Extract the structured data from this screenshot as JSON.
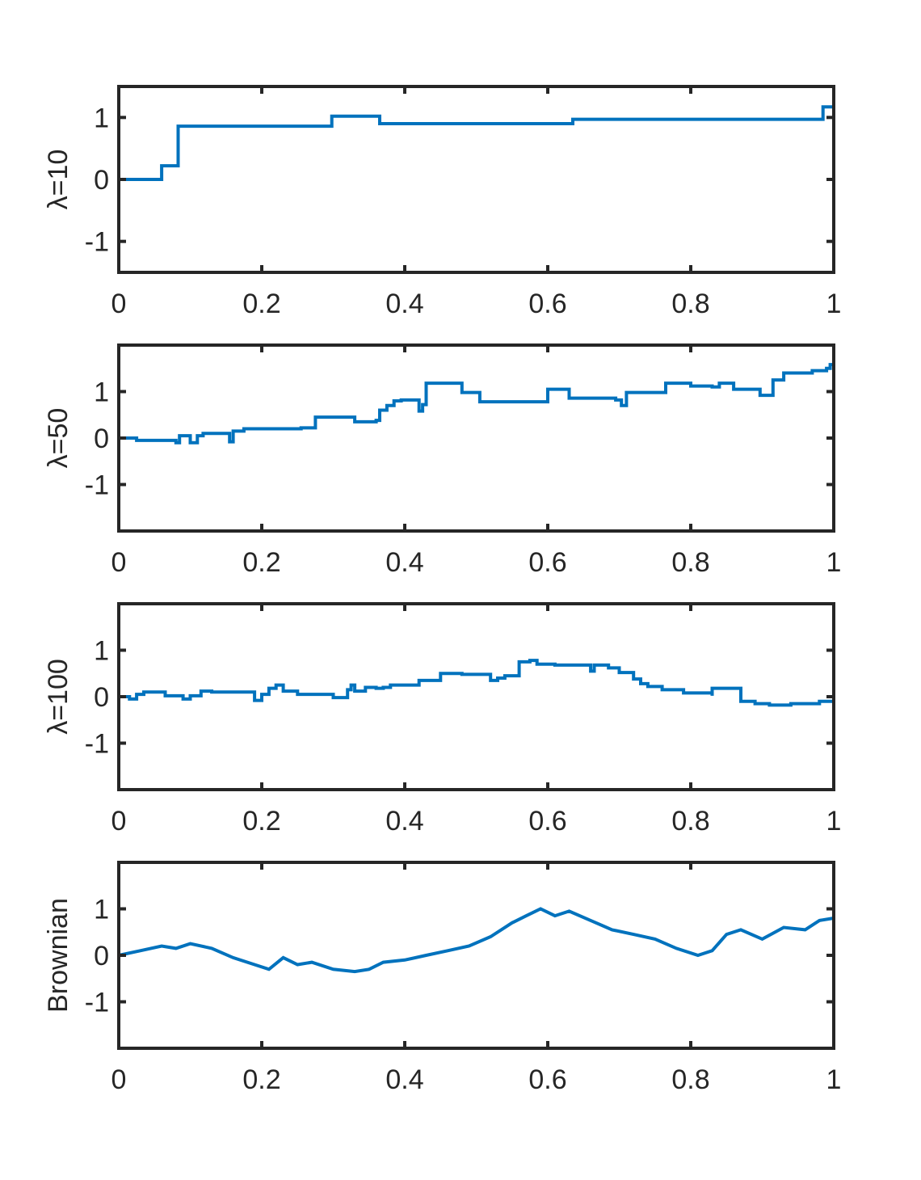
{
  "chart_data": [
    {
      "type": "line",
      "ylabel": "λ=10",
      "xlim": [
        0,
        1
      ],
      "ylim": [
        -1.5,
        1.5
      ],
      "xticks": [
        "0",
        "0.2",
        "0.4",
        "0.6",
        "0.8",
        "1"
      ],
      "yticks": [
        "-1",
        "0",
        "1"
      ],
      "color": "#0072BD",
      "step": true,
      "x": [
        0,
        0.06,
        0.083,
        0.298,
        0.365,
        0.635,
        0.985,
        1.0
      ],
      "y": [
        0.0,
        0.22,
        0.86,
        1.02,
        0.9,
        0.97,
        1.17,
        1.17
      ]
    },
    {
      "type": "line",
      "ylabel": "λ=50",
      "xlim": [
        0,
        1
      ],
      "ylim": [
        -2,
        2
      ],
      "xticks": [
        "0",
        "0.2",
        "0.4",
        "0.6",
        "0.8",
        "1"
      ],
      "yticks": [
        "-1",
        "0",
        "1"
      ],
      "color": "#0072BD",
      "step": true,
      "x": [
        0,
        0.025,
        0.08,
        0.085,
        0.1,
        0.11,
        0.118,
        0.155,
        0.16,
        0.175,
        0.255,
        0.275,
        0.293,
        0.33,
        0.36,
        0.365,
        0.375,
        0.385,
        0.395,
        0.42,
        0.425,
        0.43,
        0.452,
        0.48,
        0.505,
        0.6,
        0.612,
        0.63,
        0.675,
        0.695,
        0.703,
        0.71,
        0.745,
        0.765,
        0.8,
        0.83,
        0.84,
        0.86,
        0.87,
        0.897,
        0.9,
        0.915,
        0.93,
        0.97,
        0.99,
        0.995,
        1.0
      ],
      "y": [
        0.0,
        -0.05,
        -0.1,
        0.05,
        -0.1,
        0.05,
        0.1,
        -0.08,
        0.15,
        0.2,
        0.22,
        0.45,
        0.45,
        0.35,
        0.38,
        0.6,
        0.7,
        0.8,
        0.82,
        0.58,
        0.72,
        1.18,
        1.18,
        0.98,
        0.78,
        1.05,
        1.05,
        0.86,
        0.86,
        0.82,
        0.7,
        0.98,
        0.98,
        1.18,
        1.12,
        1.1,
        1.18,
        1.05,
        1.05,
        0.92,
        0.92,
        1.25,
        1.4,
        1.45,
        1.5,
        1.58,
        1.58
      ]
    },
    {
      "type": "line",
      "ylabel": "λ=100",
      "xlim": [
        0,
        1
      ],
      "ylim": [
        -2,
        2
      ],
      "xticks": [
        "0",
        "0.2",
        "0.4",
        "0.6",
        "0.8",
        "1"
      ],
      "yticks": [
        "-1",
        "0",
        "1"
      ],
      "color": "#0072BD",
      "step": true,
      "x": [
        0,
        0.015,
        0.025,
        0.035,
        0.065,
        0.09,
        0.1,
        0.115,
        0.13,
        0.16,
        0.19,
        0.2,
        0.21,
        0.22,
        0.23,
        0.25,
        0.275,
        0.3,
        0.32,
        0.325,
        0.33,
        0.345,
        0.36,
        0.37,
        0.38,
        0.42,
        0.45,
        0.48,
        0.52,
        0.53,
        0.54,
        0.56,
        0.575,
        0.585,
        0.61,
        0.63,
        0.66,
        0.665,
        0.685,
        0.7,
        0.72,
        0.73,
        0.74,
        0.76,
        0.79,
        0.83,
        0.83,
        0.87,
        0.88,
        0.89,
        0.91,
        0.94,
        0.98,
        1.0
      ],
      "y": [
        0.0,
        -0.05,
        0.05,
        0.1,
        0.02,
        -0.05,
        0.02,
        0.12,
        0.1,
        0.1,
        -0.08,
        0.05,
        0.18,
        0.25,
        0.12,
        0.05,
        0.05,
        -0.02,
        0.15,
        0.25,
        0.12,
        0.2,
        0.18,
        0.2,
        0.25,
        0.35,
        0.5,
        0.48,
        0.35,
        0.4,
        0.45,
        0.75,
        0.78,
        0.7,
        0.68,
        0.68,
        0.55,
        0.68,
        0.62,
        0.52,
        0.38,
        0.28,
        0.22,
        0.15,
        0.08,
        0.02,
        0.18,
        -0.1,
        -0.1,
        -0.15,
        -0.18,
        -0.15,
        -0.1,
        -0.05
      ]
    },
    {
      "type": "line",
      "ylabel": "Brownian",
      "xlim": [
        0,
        1
      ],
      "ylim": [
        -2,
        2
      ],
      "xticks": [
        "0",
        "0.2",
        "0.4",
        "0.6",
        "0.8",
        "1"
      ],
      "yticks": [
        "-1",
        "0",
        "1"
      ],
      "color": "#0072BD",
      "step": false,
      "x": [
        0,
        0.03,
        0.06,
        0.08,
        0.1,
        0.13,
        0.16,
        0.19,
        0.21,
        0.23,
        0.25,
        0.27,
        0.3,
        0.33,
        0.35,
        0.37,
        0.4,
        0.43,
        0.46,
        0.49,
        0.52,
        0.55,
        0.57,
        0.59,
        0.61,
        0.63,
        0.66,
        0.69,
        0.72,
        0.75,
        0.78,
        0.81,
        0.83,
        0.85,
        0.87,
        0.9,
        0.93,
        0.96,
        0.98,
        1.0
      ],
      "y": [
        0.0,
        0.1,
        0.2,
        0.15,
        0.25,
        0.15,
        -0.05,
        -0.2,
        -0.3,
        -0.05,
        -0.2,
        -0.15,
        -0.3,
        -0.35,
        -0.3,
        -0.15,
        -0.1,
        0.0,
        0.1,
        0.2,
        0.4,
        0.7,
        0.85,
        1.0,
        0.85,
        0.95,
        0.75,
        0.55,
        0.45,
        0.35,
        0.15,
        0.0,
        0.1,
        0.45,
        0.55,
        0.35,
        0.6,
        0.55,
        0.75,
        0.8
      ]
    }
  ]
}
